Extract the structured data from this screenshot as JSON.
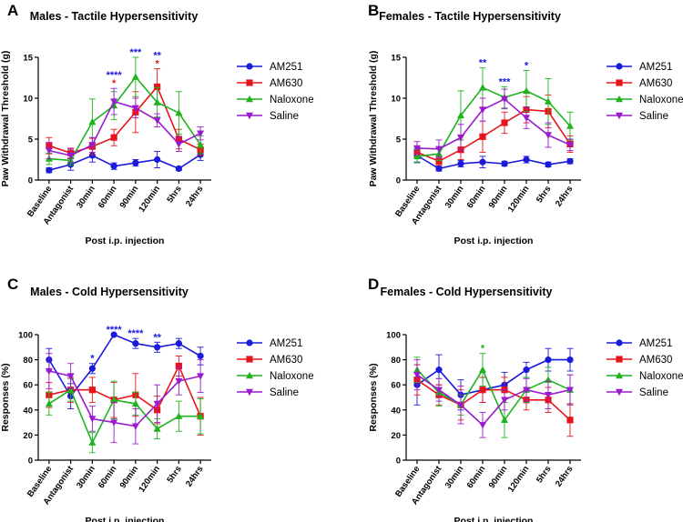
{
  "chart_data": [
    {
      "panel": "A",
      "type": "line",
      "title": "Males - Tactile Hypersensitivity",
      "xlabel": "Post i.p. injection",
      "ylabel": "Paw Withdrawal Threshold (g)",
      "ylim": [
        0,
        15
      ],
      "yticks": [
        0,
        5,
        10,
        15
      ],
      "categories": [
        "Baseline",
        "Antagonist",
        "30min",
        "60min",
        "90min",
        "120min",
        "5hrs",
        "24hrs"
      ],
      "series": [
        {
          "name": "AM251",
          "color": "#1a1adb",
          "marker": "circle",
          "values": [
            1.2,
            1.9,
            3.0,
            1.7,
            2.1,
            2.5,
            1.4,
            3.1
          ],
          "err": [
            0.3,
            0.7,
            0.8,
            0.4,
            0.4,
            1.0,
            0.2,
            0.7
          ]
        },
        {
          "name": "AM630",
          "color": "#e8141c",
          "marker": "square",
          "values": [
            4.2,
            3.3,
            4.1,
            5.2,
            8.3,
            11.4,
            5.0,
            3.7
          ],
          "err": [
            1.0,
            0.6,
            1.0,
            1.0,
            2.5,
            2.2,
            1.2,
            0.7
          ]
        },
        {
          "name": "Naloxone",
          "color": "#1db41d",
          "marker": "triangle",
          "values": [
            2.6,
            2.4,
            7.1,
            9.1,
            12.6,
            9.5,
            8.2,
            4.3
          ],
          "err": [
            0.7,
            0.6,
            2.8,
            1.7,
            2.4,
            1.8,
            2.6,
            1.1
          ]
        },
        {
          "name": "Saline",
          "color": "#9a1ad0",
          "marker": "invtriangle",
          "values": [
            3.6,
            3.0,
            4.3,
            9.6,
            8.8,
            7.3,
            4.4,
            5.7
          ],
          "err": [
            1.0,
            0.8,
            0.9,
            1.6,
            1.2,
            0.8,
            0.9,
            0.8
          ]
        }
      ],
      "significance": [
        {
          "category": "60min",
          "rows": [
            {
              "text": "****",
              "color": "#1a1adb"
            },
            {
              "text": "*",
              "color": "#e8141c"
            }
          ]
        },
        {
          "category": "90min",
          "rows": [
            {
              "text": "***",
              "color": "#1a1adb"
            }
          ]
        },
        {
          "category": "120min",
          "rows": [
            {
              "text": "**",
              "color": "#1a1adb"
            },
            {
              "text": "*",
              "color": "#e8141c"
            }
          ]
        }
      ]
    },
    {
      "panel": "B",
      "type": "line",
      "title": "Females - Tactile Hypersensitivity",
      "xlabel": "Post i.p. injection",
      "ylabel": "Paw Withdrawal Threshold (g)",
      "ylim": [
        0,
        15
      ],
      "yticks": [
        0,
        5,
        10,
        15
      ],
      "categories": [
        "Baseline",
        "Antagonist",
        "30min",
        "60min",
        "90min",
        "120min",
        "5hrs",
        "24hrs"
      ],
      "series": [
        {
          "name": "AM251",
          "color": "#1a1adb",
          "marker": "circle",
          "values": [
            3.0,
            1.4,
            2.0,
            2.2,
            2.0,
            2.5,
            1.9,
            2.3
          ],
          "err": [
            0.8,
            0.3,
            0.4,
            0.7,
            0.3,
            0.4,
            0.3,
            0.3
          ]
        },
        {
          "name": "AM630",
          "color": "#e8141c",
          "marker": "square",
          "values": [
            3.4,
            2.3,
            3.7,
            5.3,
            7.0,
            8.6,
            8.4,
            4.4
          ],
          "err": [
            0.6,
            0.5,
            1.2,
            1.9,
            1.3,
            1.6,
            2.0,
            1.0
          ]
        },
        {
          "name": "Naloxone",
          "color": "#1db41d",
          "marker": "triangle",
          "values": [
            2.9,
            3.2,
            7.9,
            11.3,
            10.1,
            10.9,
            9.6,
            6.6
          ],
          "err": [
            0.8,
            0.8,
            3.0,
            2.4,
            1.3,
            2.5,
            2.8,
            1.7
          ]
        },
        {
          "name": "Saline",
          "color": "#9a1ad0",
          "marker": "invtriangle",
          "values": [
            3.9,
            3.8,
            5.2,
            8.6,
            9.9,
            7.6,
            5.5,
            4.3
          ],
          "err": [
            0.8,
            1.1,
            1.6,
            1.4,
            1.2,
            1.3,
            1.5,
            0.7
          ]
        }
      ],
      "significance": [
        {
          "category": "60min",
          "rows": [
            {
              "text": "**",
              "color": "#1a1adb"
            }
          ]
        },
        {
          "category": "90min",
          "rows": [
            {
              "text": "***",
              "color": "#1a1adb"
            }
          ]
        },
        {
          "category": "120min",
          "rows": [
            {
              "text": "*",
              "color": "#1a1adb"
            }
          ]
        }
      ]
    },
    {
      "panel": "C",
      "type": "line",
      "title": "Males - Cold Hypersensitivity",
      "xlabel": "Post i.p. injection",
      "ylabel": "Responses (%)",
      "ylim": [
        0,
        100
      ],
      "yticks": [
        0,
        20,
        40,
        60,
        80,
        100
      ],
      "categories": [
        "Baseline",
        "Antagonist",
        "30min",
        "60min",
        "90min",
        "120min",
        "5hrs",
        "24hrs"
      ],
      "series": [
        {
          "name": "AM251",
          "color": "#1a1adb",
          "marker": "circle",
          "values": [
            80,
            51,
            73,
            100,
            93,
            90,
            93,
            83
          ],
          "err": [
            9,
            10,
            4,
            0,
            4,
            4,
            4,
            7
          ]
        },
        {
          "name": "AM630",
          "color": "#e8141c",
          "marker": "square",
          "values": [
            52,
            56,
            56,
            48,
            52,
            40,
            75,
            35
          ],
          "err": [
            10,
            10,
            10,
            14,
            17,
            11,
            8,
            15
          ]
        },
        {
          "name": "Naloxone",
          "color": "#1db41d",
          "marker": "triangle",
          "values": [
            45,
            56,
            14,
            48,
            45,
            25,
            35,
            35
          ],
          "err": [
            9,
            9,
            8,
            15,
            9,
            8,
            12,
            14
          ]
        },
        {
          "name": "Saline",
          "color": "#9a1ad0",
          "marker": "invtriangle",
          "values": [
            71,
            67,
            33,
            30,
            27,
            45,
            63,
            67
          ],
          "err": [
            14,
            10,
            10,
            16,
            14,
            15,
            11,
            13
          ]
        }
      ],
      "significance": [
        {
          "category": "30min",
          "rows": [
            {
              "text": "*",
              "color": "#1a1adb"
            }
          ]
        },
        {
          "category": "60min",
          "rows": [
            {
              "text": "****",
              "color": "#1a1adb"
            }
          ]
        },
        {
          "category": "90min",
          "rows": [
            {
              "text": "****",
              "color": "#1a1adb"
            }
          ]
        },
        {
          "category": "120min",
          "rows": [
            {
              "text": "**",
              "color": "#1a1adb"
            }
          ]
        }
      ]
    },
    {
      "panel": "D",
      "type": "line",
      "title": "Females - Cold Hypersensitivity",
      "xlabel": "Post i.p. injection",
      "ylabel": "Responses (%)",
      "ylim": [
        0,
        100
      ],
      "yticks": [
        0,
        20,
        40,
        60,
        80,
        100
      ],
      "categories": [
        "Baseline",
        "Antagonist",
        "30min",
        "60min",
        "90min",
        "120min",
        "5hrs",
        "24hrs"
      ],
      "series": [
        {
          "name": "AM251",
          "color": "#1a1adb",
          "marker": "circle",
          "values": [
            60,
            72,
            52,
            56,
            60,
            72,
            80,
            80
          ],
          "err": [
            16,
            12,
            12,
            10,
            10,
            6,
            9,
            9
          ]
        },
        {
          "name": "AM630",
          "color": "#e8141c",
          "marker": "square",
          "values": [
            64,
            52,
            44,
            56,
            56,
            48,
            48,
            32
          ],
          "err": [
            12,
            8,
            12,
            10,
            10,
            8,
            10,
            13
          ]
        },
        {
          "name": "Naloxone",
          "color": "#1db41d",
          "marker": "triangle",
          "values": [
            72,
            54,
            44,
            72,
            32,
            56,
            64,
            56
          ],
          "err": [
            10,
            11,
            8,
            13,
            14,
            10,
            10,
            12
          ]
        },
        {
          "name": "Saline",
          "color": "#9a1ad0",
          "marker": "invtriangle",
          "values": [
            68,
            56,
            44,
            28,
            48,
            56,
            52,
            56
          ],
          "err": [
            12,
            9,
            15,
            10,
            8,
            9,
            11,
            12
          ]
        }
      ],
      "significance": [
        {
          "category": "60min",
          "rows": [
            {
              "text": "*",
              "color": "#1db41d"
            }
          ]
        }
      ]
    }
  ]
}
